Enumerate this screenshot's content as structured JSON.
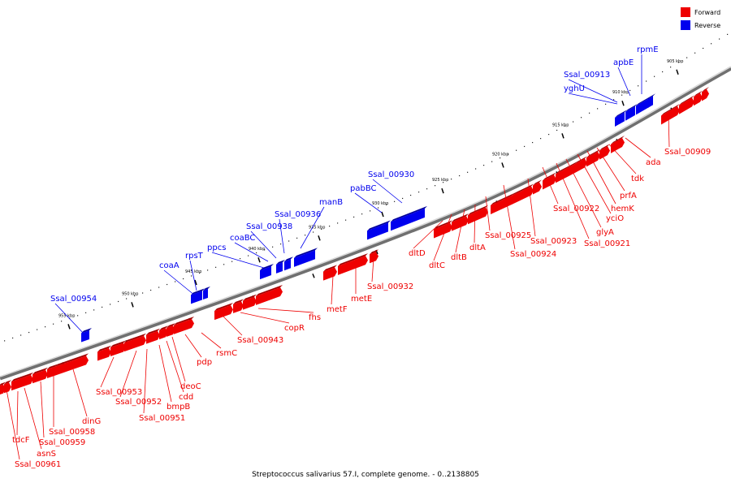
{
  "caption": "Streptococcus salivarius 57.I, complete genome. - 0..2138805",
  "legend": [
    {
      "label": "Forward",
      "color": "#ee0000"
    },
    {
      "label": "Reverse",
      "color": "#0000ee"
    }
  ],
  "colors": {
    "forward": "#ee0000",
    "forward_dark": "#a00000",
    "reverse": "#0000ee",
    "reverse_dark": "#00009a",
    "backbone": "#8a8a8a"
  },
  "kbp_ticks": [
    "905 kbp",
    "910 kbp",
    "915 kbp",
    "920 kbp",
    "925 kbp",
    "930 kbp",
    "935 kbp",
    "940 kbp",
    "945 kbp",
    "950 kbp",
    "955 kbp"
  ],
  "forward_labels": [
    "Ssal_00909",
    "ada",
    "tdk",
    "prfA",
    "hemK",
    "yciO",
    "glyA",
    "Ssal_00921",
    "Ssal_00922",
    "Ssal_00923",
    "Ssal_00924",
    "Ssal_00925",
    "dltA",
    "dltB",
    "dltC",
    "dltD",
    "Ssal_00932",
    "metE",
    "metF",
    "fhs",
    "copR",
    "Ssal_00943",
    "rsmC",
    "pdp",
    "deoC",
    "cdd",
    "bmpB",
    "Ssal_00951",
    "Ssal_00952",
    "Ssal_00953",
    "dinG",
    "Ssal_00958",
    "Ssal_00959",
    "asnS",
    "tdcF",
    "Ssal_00961"
  ],
  "reverse_labels": [
    "rpmE",
    "apbE",
    "Ssal_00913",
    "yghU",
    "Ssal_00930",
    "pabBC",
    "manB",
    "Ssal_00936",
    "Ssal_00938",
    "coaBC",
    "ppcs",
    "rpsT",
    "coaA",
    "Ssal_00954"
  ]
}
